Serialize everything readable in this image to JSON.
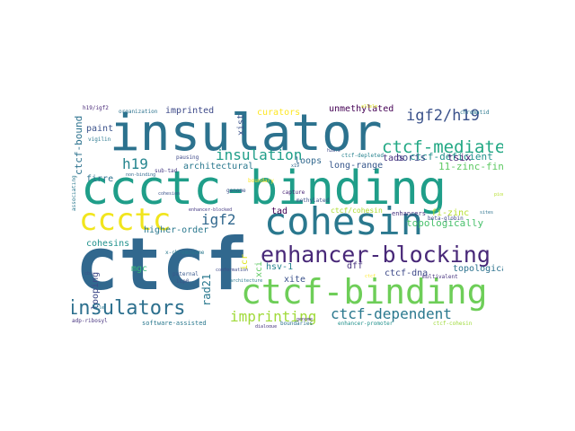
{
  "words": [
    {
      "text": "ctcf",
      "color": "#31688e"
    },
    {
      "text": "ccctc-binding",
      "color": "#1f9e89"
    },
    {
      "text": "insulator",
      "color": "#2c728e"
    },
    {
      "text": "cohesin",
      "color": "#2a788e"
    },
    {
      "text": "ctcf-binding",
      "color": "#6ece58"
    },
    {
      "text": "ccctc",
      "color": "#f1e51d"
    },
    {
      "text": "enhancer-blocking",
      "color": "#482878"
    },
    {
      "text": "insulators",
      "color": "#2d708e"
    },
    {
      "text": "ctcf-mediated",
      "color": "#22a884"
    },
    {
      "text": "igf2/h19",
      "color": "#3b528b"
    },
    {
      "text": "ctcf-dependent",
      "color": "#2a788e"
    },
    {
      "text": "imprinting",
      "color": "#a0da39"
    },
    {
      "text": "insulation",
      "color": "#1f9e89"
    },
    {
      "text": "igf2",
      "color": "#31688e"
    },
    {
      "text": "h19",
      "color": "#25858e"
    },
    {
      "text": "unmethylated",
      "color": "#440154"
    },
    {
      "text": "ctcf-deficient",
      "color": "#21918c"
    },
    {
      "text": "topologically",
      "color": "#4ac16d"
    },
    {
      "text": "boris",
      "color": "#3e4a89"
    },
    {
      "text": "tsix",
      "color": "#482475"
    },
    {
      "text": "11-zinc-finger",
      "color": "#5ec962"
    },
    {
      "text": "ctcf-bound",
      "color": "#2c728e"
    },
    {
      "text": "xist",
      "color": "#3b528b"
    },
    {
      "text": "rad21",
      "color": "#2a788e"
    },
    {
      "text": "imprinted",
      "color": "#3e4a89"
    },
    {
      "text": "curators",
      "color": "#fde725"
    },
    {
      "text": "architectural",
      "color": "#2a788e"
    },
    {
      "text": "loops",
      "color": "#31688e"
    },
    {
      "text": "long-range",
      "color": "#38588c"
    },
    {
      "text": "tads",
      "color": "#46327e"
    },
    {
      "text": "fi-zinc",
      "color": "#b5de2b"
    },
    {
      "text": "firre",
      "color": "#2c728e"
    },
    {
      "text": "paint",
      "color": "#3b528b"
    },
    {
      "text": "higher-order",
      "color": "#2a788e"
    },
    {
      "text": "cohesins",
      "color": "#21918c"
    },
    {
      "text": "topological",
      "color": "#2c728e"
    },
    {
      "text": "ctcf-dna",
      "color": "#3e4a89"
    },
    {
      "text": "hsv-1",
      "color": "#26828e"
    },
    {
      "text": "xite",
      "color": "#3b528b"
    },
    {
      "text": "dff",
      "color": "#46327e"
    },
    {
      "text": "mgc",
      "color": "#35b779"
    },
    {
      "text": "icr",
      "color": "#dde318"
    },
    {
      "text": "tad",
      "color": "#440154"
    },
    {
      "text": "looping",
      "color": "#3e4a89"
    },
    {
      "text": "software-assisted",
      "color": "#2a788e"
    },
    {
      "text": "xci",
      "color": "#5ec962"
    },
    {
      "text": "ctcf/cohesin",
      "color": "#addc30"
    },
    {
      "text": "enhancers",
      "color": "#46327e"
    },
    {
      "text": "beta-globin",
      "color": "#3e4a89"
    },
    {
      "text": "boundary",
      "color": "#fde725"
    },
    {
      "text": "methylated",
      "color": "#3b528b"
    },
    {
      "text": "capture",
      "color": "#482475"
    },
    {
      "text": "boundaries",
      "color": "#2c728e"
    },
    {
      "text": "enhancer-promoter",
      "color": "#21918c"
    },
    {
      "text": "ctcf-cohesin",
      "color": "#9fda3a"
    },
    {
      "text": "paternal",
      "color": "#38588c"
    },
    {
      "text": "icp0",
      "color": "#3b528b"
    },
    {
      "text": "x-chromosome",
      "color": "#2a788e"
    },
    {
      "text": "adp-ribosyl",
      "color": "#46327e"
    },
    {
      "text": "sub-tad",
      "color": "#443983"
    },
    {
      "text": "pausing",
      "color": "#3e4a89"
    },
    {
      "text": "vigilin",
      "color": "#2a788e"
    },
    {
      "text": "organization",
      "color": "#2c728e"
    },
    {
      "text": "h19/igf2",
      "color": "#482878"
    },
    {
      "text": "chromatid",
      "color": "#2a788e"
    },
    {
      "text": "associating",
      "color": "#2a788e"
    },
    {
      "text": "genome",
      "color": "#3b528b"
    },
    {
      "text": "multivalent",
      "color": "#46327e"
    },
    {
      "text": "ctcf-depleted",
      "color": "#26828e"
    },
    {
      "text": "h2a.z",
      "color": "#3e4a89"
    },
    {
      "text": "x19",
      "color": "#31688e"
    },
    {
      "text": "architecture",
      "color": "#2a788e"
    },
    {
      "text": "conformation",
      "color": "#3e4a89"
    },
    {
      "text": "dialogue",
      "color": "#46327e"
    },
    {
      "text": "non-binding",
      "color": "#31688e"
    },
    {
      "text": "cohesion",
      "color": "#3b528b"
    },
    {
      "text": "enhancer-blocked",
      "color": "#443983"
    },
    {
      "text": "genome",
      "color": "#46327e"
    },
    {
      "text": "bcle",
      "color": "#2a788e"
    },
    {
      "text": "allele",
      "color": "#dde318"
    },
    {
      "text": "pioneer",
      "color": "#b5de2b"
    },
    {
      "text": "ctcf",
      "color": "#fde725"
    },
    {
      "text": "cbs",
      "color": "#3b528b"
    },
    {
      "text": "sites",
      "color": "#2c728e"
    }
  ]
}
